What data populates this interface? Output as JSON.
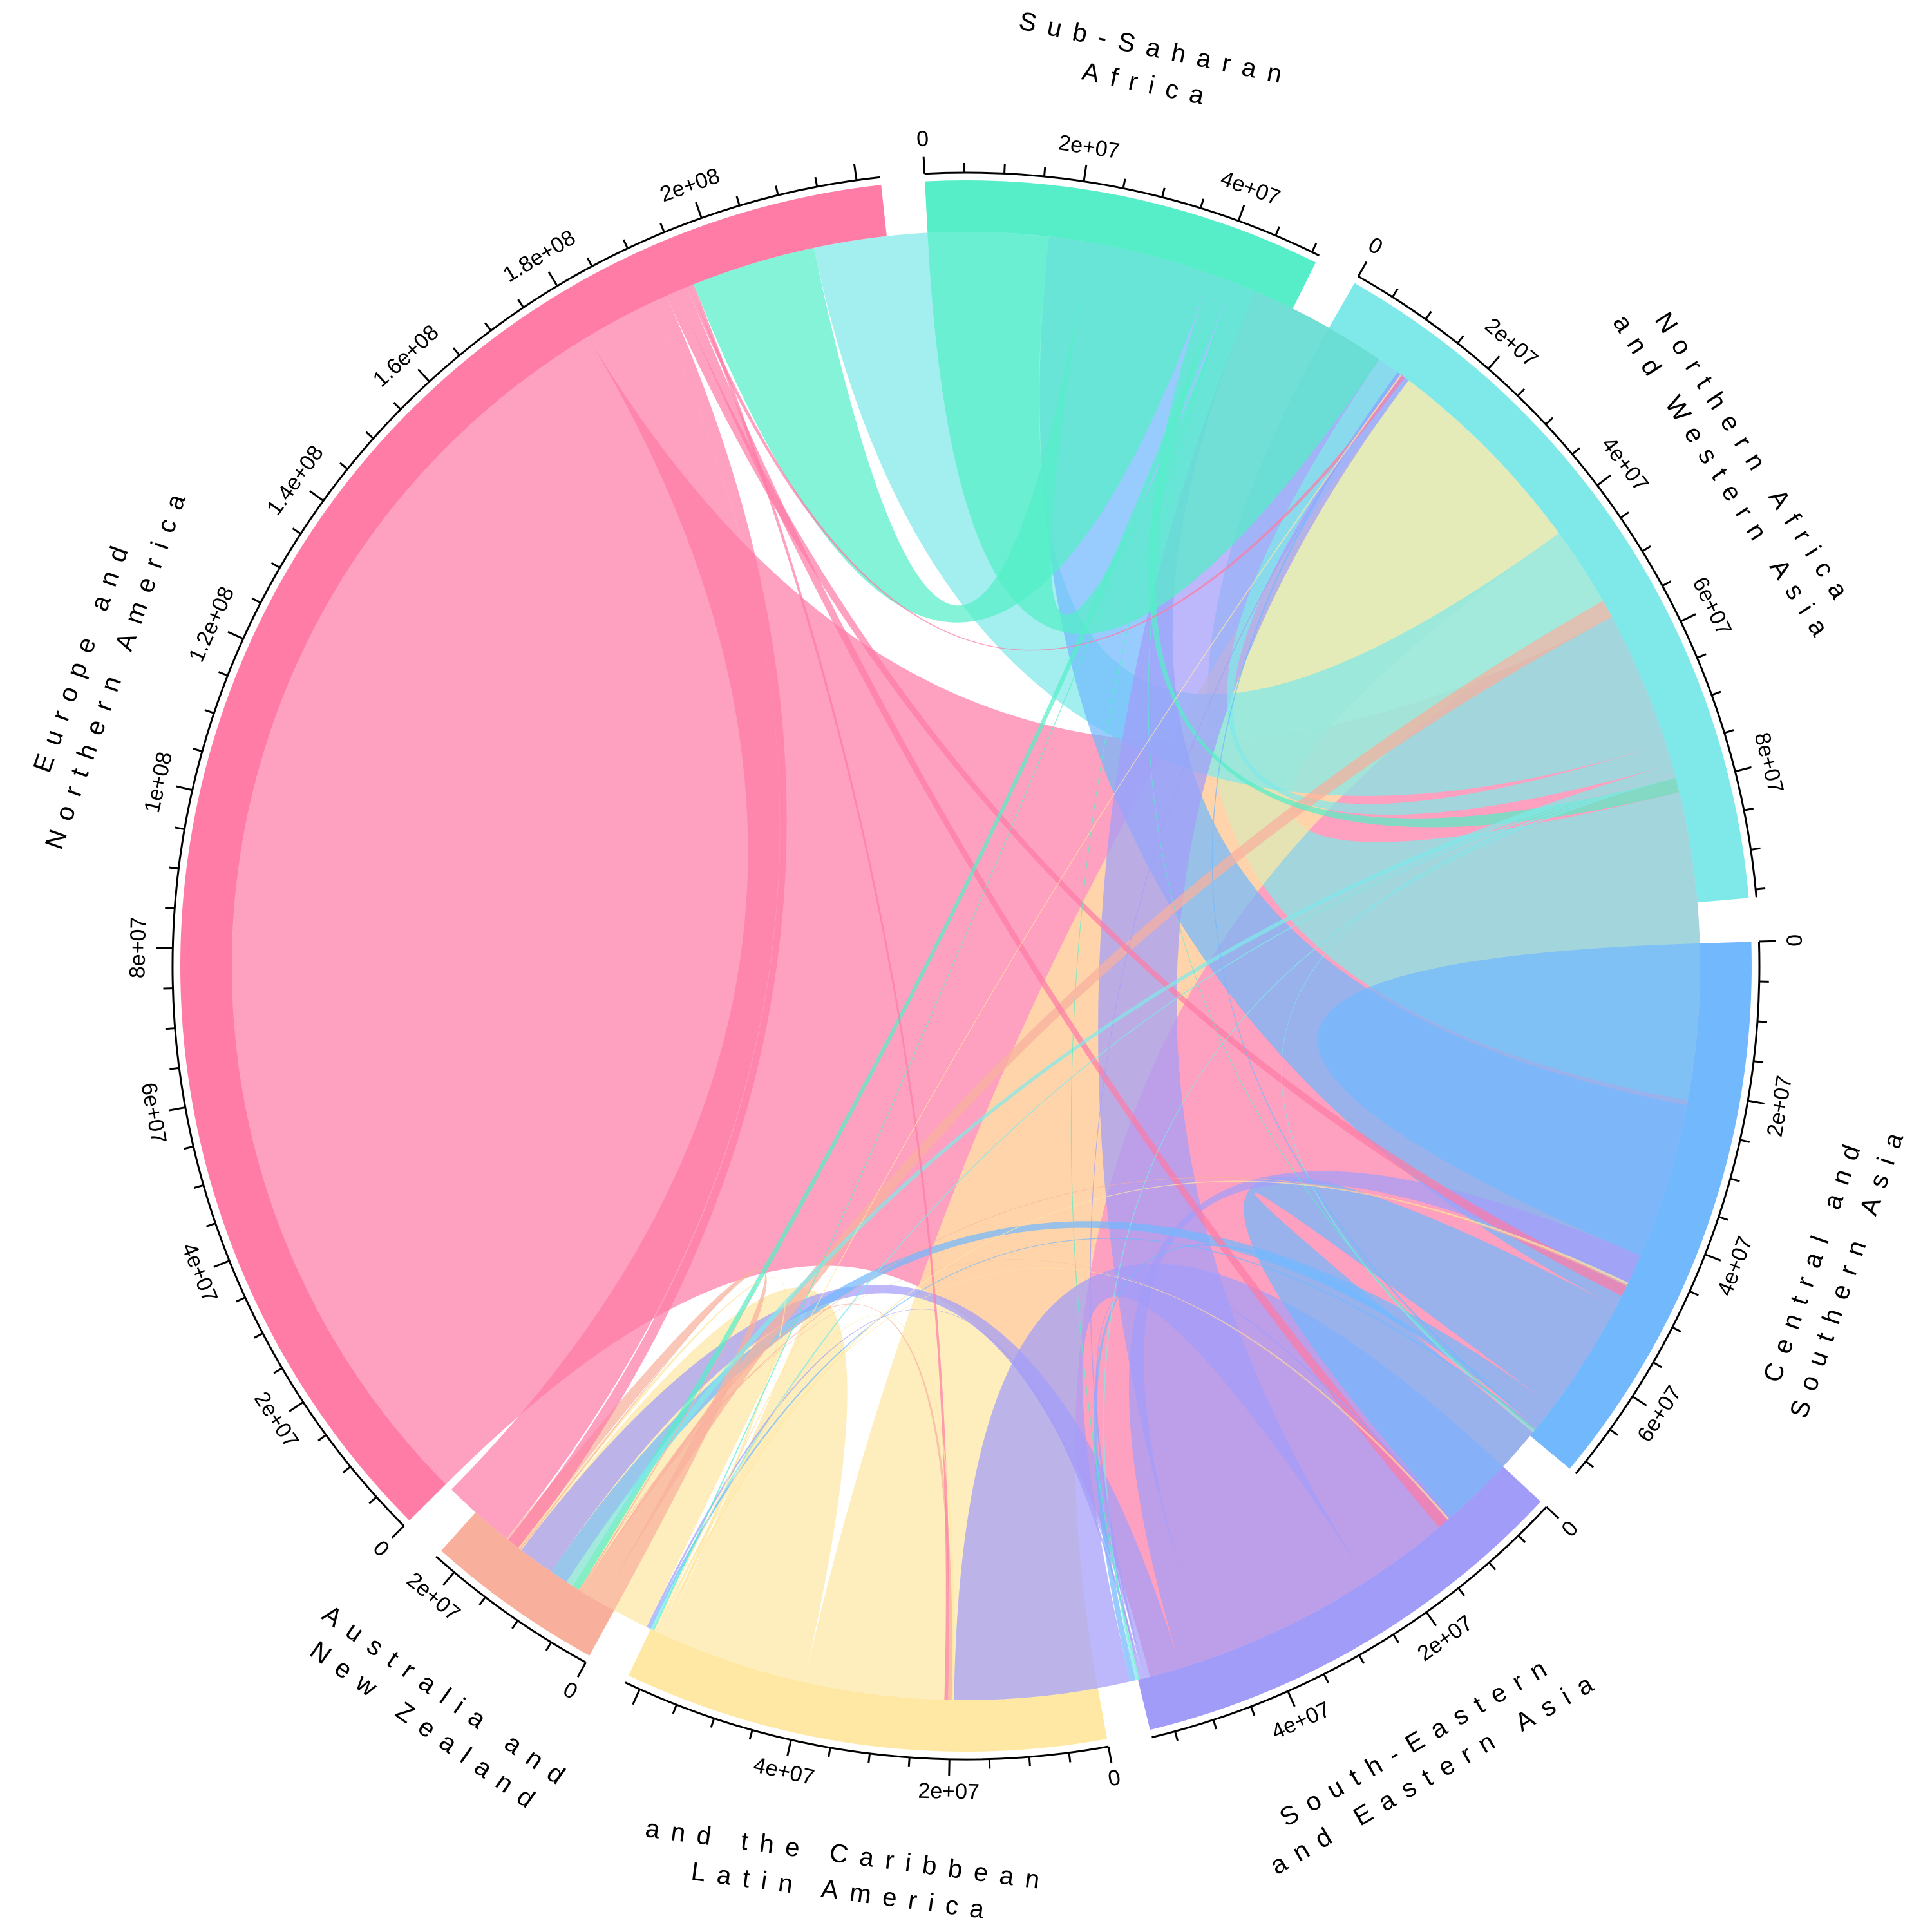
{
  "chart_data": {
    "type": "chord",
    "regions": [
      {
        "name": "Sub-Saharan Africa",
        "label_lines": [
          "Sub-Saharan",
          "Africa"
        ],
        "total": 51000000,
        "tick_step": 5000000,
        "label_step": 20000000,
        "label_start": 0,
        "tick_labels": [
          "0",
          "2e+07",
          "4e+07"
        ],
        "color": "#55eec8"
      },
      {
        "name": "Northern Africa and Western Asia",
        "label_lines": [
          "Northern Africa",
          "and Western Asia"
        ],
        "total": 96000000,
        "tick_step": 5000000,
        "label_step": 20000000,
        "label_start": 0,
        "tick_labels": [
          "0",
          "2e+07",
          "4e+07",
          "6e+07",
          "8e+07"
        ],
        "color": "#7fe9e9"
      },
      {
        "name": "Central and Southern Asia",
        "label_lines": [
          "Central and",
          "Southern Asia"
        ],
        "total": 72000000,
        "tick_step": 5000000,
        "label_step": 20000000,
        "label_start": 0,
        "tick_labels": [
          "0",
          "2e+07",
          "4e+07",
          "6e+07"
        ],
        "color": "#72b8fd"
      },
      {
        "name": "South-Eastern and Eastern Asia",
        "label_lines": [
          "South-Eastern",
          "and Eastern Asia"
        ],
        "total": 58000000,
        "tick_step": 5000000,
        "label_step": 20000000,
        "label_start": 0,
        "tick_labels": [
          "0",
          "2e+07",
          "4e+07"
        ],
        "color": "#a29cf9"
      },
      {
        "name": "Latin America and the Caribbean",
        "label_lines": [
          "and the Caribbean",
          "Latin America"
        ],
        "total": 62000000,
        "tick_step": 5000000,
        "label_step": 20000000,
        "label_start": 0,
        "tick_labels": [
          "0",
          "2e+07",
          "4e+07"
        ],
        "color": "#ffe8a3"
      },
      {
        "name": "Australia and New Zealand",
        "label_lines": [
          "Australia and",
          "New Zealand"
        ],
        "total": 23000000,
        "tick_step": 5000000,
        "label_step": 20000000,
        "label_start": 0,
        "tick_labels": [
          "0",
          "2e+07"
        ],
        "color": "#f8b09c"
      },
      {
        "name": "Europe and Northern America",
        "label_lines": [
          "Europe and",
          "Northern America"
        ],
        "total": 223000000,
        "tick_step": 5000000,
        "label_step": 20000000,
        "label_start": 0,
        "tick_labels": [
          "0",
          "2e+07",
          "4e+07",
          "6e+07",
          "8e+07",
          "1e+08",
          "1.2e+08",
          "1.4e+08",
          "1.6e+08",
          "1.8e+08",
          "2e+08"
        ],
        "color": "#fe7ca6"
      }
    ],
    "flows": [
      {
        "from": "Sub-Saharan Africa",
        "to": "Sub-Saharan Africa",
        "value": 22000000
      },
      {
        "from": "Sub-Saharan Africa",
        "to": "Europe and Northern America",
        "value": 17000000
      },
      {
        "from": "Sub-Saharan Africa",
        "to": "Northern Africa and Western Asia",
        "value": 2000000
      },
      {
        "from": "Sub-Saharan Africa",
        "to": "Australia and New Zealand",
        "value": 1000000
      },
      {
        "from": "Sub-Saharan Africa",
        "to": "Latin America and the Caribbean",
        "value": 200000
      },
      {
        "from": "Sub-Saharan Africa",
        "to": "Central and Southern Asia",
        "value": 200000
      },
      {
        "from": "Sub-Saharan Africa",
        "to": "South-Eastern and Eastern Asia",
        "value": 200000
      },
      {
        "from": "Northern Africa and Western Asia",
        "to": "Northern Africa and Western Asia",
        "value": 42000000
      },
      {
        "from": "Northern Africa and Western Asia",
        "to": "Europe and Northern America",
        "value": 32000000
      },
      {
        "from": "Northern Africa and Western Asia",
        "to": "Sub-Saharan Africa",
        "value": 3000000
      },
      {
        "from": "Northern Africa and Western Asia",
        "to": "Australia and New Zealand",
        "value": 1000000
      },
      {
        "from": "Northern Africa and Western Asia",
        "to": "Latin America and the Caribbean",
        "value": 300000
      },
      {
        "from": "Northern Africa and Western Asia",
        "to": "Central and Southern Asia",
        "value": 300000
      },
      {
        "from": "Northern Africa and Western Asia",
        "to": "South-Eastern and Eastern Asia",
        "value": 300000
      },
      {
        "from": "Central and Southern Asia",
        "to": "Northern Africa and Western Asia",
        "value": 22000000
      },
      {
        "from": "Central and Southern Asia",
        "to": "Europe and Northern America",
        "value": 29000000
      },
      {
        "from": "Central and Southern Asia",
        "to": "Central and Southern Asia",
        "value": 16000000
      },
      {
        "from": "Central and Southern Asia",
        "to": "Australia and New Zealand",
        "value": 2500000
      },
      {
        "from": "Central and Southern Asia",
        "to": "South-Eastern and Eastern Asia",
        "value": 800000
      },
      {
        "from": "Central and Southern Asia",
        "to": "Sub-Saharan Africa",
        "value": 300000
      },
      {
        "from": "Central and Southern Asia",
        "to": "Latin America and the Caribbean",
        "value": 300000
      },
      {
        "from": "South-Eastern and Eastern Asia",
        "to": "South-Eastern and Eastern Asia",
        "value": 24000000
      },
      {
        "from": "South-Eastern and Eastern Asia",
        "to": "Europe and Northern America",
        "value": 24000000
      },
      {
        "from": "South-Eastern and Eastern Asia",
        "to": "Northern Africa and Western Asia",
        "value": 4000000
      },
      {
        "from": "South-Eastern and Eastern Asia",
        "to": "Australia and New Zealand",
        "value": 5000000
      },
      {
        "from": "South-Eastern and Eastern Asia",
        "to": "Central and Southern Asia",
        "value": 300000
      },
      {
        "from": "South-Eastern and Eastern Asia",
        "to": "Latin America and the Caribbean",
        "value": 300000
      },
      {
        "from": "South-Eastern and Eastern Asia",
        "to": "Sub-Saharan Africa",
        "value": 200000
      },
      {
        "from": "Latin America and the Caribbean",
        "to": "Europe and Northern America",
        "value": 40000000
      },
      {
        "from": "Latin America and the Caribbean",
        "to": "Latin America and the Caribbean",
        "value": 20000000
      },
      {
        "from": "Latin America and the Caribbean",
        "to": "Australia and New Zealand",
        "value": 500000
      },
      {
        "from": "Latin America and the Caribbean",
        "to": "Northern Africa and Western Asia",
        "value": 300000
      },
      {
        "from": "Latin America and the Caribbean",
        "to": "South-Eastern and Eastern Asia",
        "value": 300000
      },
      {
        "from": "Latin America and the Caribbean",
        "to": "Central and Southern Asia",
        "value": 200000
      },
      {
        "from": "Latin America and the Caribbean",
        "to": "Sub-Saharan Africa",
        "value": 200000
      },
      {
        "from": "Australia and New Zealand",
        "to": "Australia and New Zealand",
        "value": 2000000
      },
      {
        "from": "Australia and New Zealand",
        "to": "Europe and Northern America",
        "value": 2500000
      },
      {
        "from": "Australia and New Zealand",
        "to": "South-Eastern and Eastern Asia",
        "value": 500000
      },
      {
        "from": "Australia and New Zealand",
        "to": "Northern Africa and Western Asia",
        "value": 200000
      },
      {
        "from": "Australia and New Zealand",
        "to": "Latin America and the Caribbean",
        "value": 200000
      },
      {
        "from": "Australia and New Zealand",
        "to": "Central and Southern Asia",
        "value": 100000
      },
      {
        "from": "Europe and Northern America",
        "to": "Europe and Northern America",
        "value": 180000000
      },
      {
        "from": "Europe and Northern America",
        "to": "Australia and New Zealand",
        "value": 10000000
      },
      {
        "from": "Europe and Northern America",
        "to": "Latin America and the Caribbean",
        "value": 2000000
      },
      {
        "from": "Europe and Northern America",
        "to": "Northern Africa and Western Asia",
        "value": 1500000
      },
      {
        "from": "Europe and Northern America",
        "to": "Central and Southern Asia",
        "value": 1500000
      },
      {
        "from": "Europe and Northern America",
        "to": "Sub-Saharan Africa",
        "value": 500000
      },
      {
        "from": "Europe and Northern America",
        "to": "South-Eastern and Eastern Asia",
        "value": 500000
      }
    ]
  }
}
